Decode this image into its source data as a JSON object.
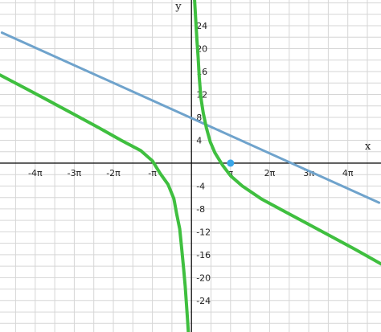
{
  "chart_data": {
    "type": "line",
    "title": "",
    "xlabel": "x",
    "ylabel": "y",
    "x_unit": "pi",
    "xlim": [
      -4.9,
      4.85
    ],
    "ylim": [
      -29.5,
      28.5
    ],
    "grid": true,
    "legend": "none",
    "x_ticks": [
      {
        "value": -4,
        "label": "-4π"
      },
      {
        "value": -3,
        "label": "-3π"
      },
      {
        "value": -2,
        "label": "-2π"
      },
      {
        "value": -1,
        "label": "-π"
      },
      {
        "value": 1,
        "label": "π"
      },
      {
        "value": 2,
        "label": "2π"
      },
      {
        "value": 3,
        "label": "3π"
      },
      {
        "value": 4,
        "label": "4π"
      }
    ],
    "y_ticks": [
      {
        "value": 24,
        "label": "24"
      },
      {
        "value": 20,
        "label": "20"
      },
      {
        "value": 16,
        "label": "16"
      },
      {
        "value": 12,
        "label": "12"
      },
      {
        "value": 8,
        "label": "8"
      },
      {
        "value": 4,
        "label": "4"
      },
      {
        "value": -4,
        "label": "-4"
      },
      {
        "value": -8,
        "label": "-8"
      },
      {
        "value": -12,
        "label": "-12"
      },
      {
        "value": -16,
        "label": "-16"
      },
      {
        "value": -20,
        "label": "-20"
      },
      {
        "value": -24,
        "label": "-24"
      }
    ],
    "series": [
      {
        "color": "#6fa3cc",
        "style": "straight line",
        "x": [
          -4.85,
          4.8
        ],
        "y": [
          22.8,
          -6.9
        ]
      },
      {
        "color": "#3fbf3f",
        "style": "curve",
        "x": [
          -4.9,
          -4.2,
          -3.6,
          -3.0,
          -2.4,
          -1.8,
          -1.3,
          -1.0,
          -0.8,
          -0.6,
          -0.45,
          -0.38,
          -0.3,
          -0.25,
          -0.2,
          -0.16,
          -0.13,
          -0.1,
          -0.08
        ],
        "y": [
          15.4,
          12.9,
          10.7,
          8.5,
          6.3,
          4.0,
          2.2,
          0.4,
          -1.8,
          -3.7,
          -6.2,
          -8.8,
          -11.5,
          -15.0,
          -18.5,
          -21.5,
          -24.5,
          -27.5,
          -29.5
        ]
      },
      {
        "color": "#3fbf3f",
        "style": "curve",
        "x": [
          0.08,
          0.11,
          0.14,
          0.17,
          0.2,
          0.24,
          0.3,
          0.38,
          0.48,
          0.6,
          0.8,
          1.0,
          1.3,
          1.8,
          2.4,
          3.0,
          3.6,
          4.2,
          4.85
        ],
        "y": [
          28.5,
          24.8,
          21.5,
          18.5,
          15.0,
          11.5,
          8.8,
          6.2,
          3.7,
          1.8,
          -0.4,
          -2.2,
          -4.0,
          -6.3,
          -8.5,
          -10.7,
          -12.9,
          -15.1,
          -17.6
        ]
      }
    ],
    "points": [
      {
        "x": 1.0,
        "y": 0,
        "color": "#3aa6e8"
      }
    ]
  }
}
